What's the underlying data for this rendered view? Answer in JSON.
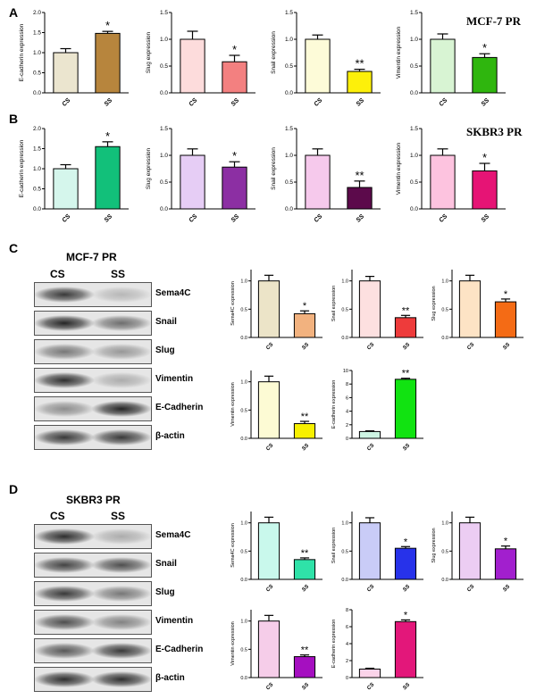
{
  "panels": {
    "A": {
      "letter": "A",
      "cell_line": "MCF-7 PR"
    },
    "B": {
      "letter": "B",
      "cell_line": "SKBR3 PR"
    },
    "C": {
      "letter": "C",
      "blot_title": "MCF-7 PR",
      "lanes": [
        "CS",
        "SS"
      ],
      "bands": [
        "Sema4C",
        "Snail",
        "Slug",
        "Vimentin",
        "E-Cadherin",
        "β-actin"
      ]
    },
    "D": {
      "letter": "D",
      "blot_title": "SKBR3 PR",
      "lanes": [
        "CS",
        "SS"
      ],
      "bands": [
        "Sema4C",
        "Snail",
        "Slug",
        "Vimentin",
        "E-Cadherin",
        "β-actin"
      ]
    }
  },
  "chart_data": [
    {
      "id": "A1",
      "type": "bar",
      "categories": [
        "CS",
        "SS"
      ],
      "values": [
        1.0,
        1.48
      ],
      "errors": [
        0.1,
        0.05
      ],
      "ylabel": "E-cadherin expression",
      "ylim": [
        0,
        2.0
      ],
      "yticks": [
        "0.0",
        "0.5",
        "1.0",
        "1.5",
        "2.0"
      ],
      "colors": [
        "#ebe5cf",
        "#b7853d"
      ],
      "significance": [
        "",
        "*"
      ],
      "grid": false
    },
    {
      "id": "A2",
      "type": "bar",
      "categories": [
        "CS",
        "SS"
      ],
      "values": [
        1.0,
        0.58
      ],
      "errors": [
        0.15,
        0.12
      ],
      "ylabel": "Slug expression",
      "ylim": [
        0,
        1.5
      ],
      "yticks": [
        "0.0",
        "0.5",
        "1.0",
        "1.5"
      ],
      "colors": [
        "#fddcdc",
        "#f38080"
      ],
      "significance": [
        "",
        "*"
      ],
      "grid": false
    },
    {
      "id": "A3",
      "type": "bar",
      "categories": [
        "CS",
        "SS"
      ],
      "values": [
        1.0,
        0.4
      ],
      "errors": [
        0.08,
        0.04
      ],
      "ylabel": "Snail expression",
      "ylim": [
        0,
        1.5
      ],
      "yticks": [
        "0.0",
        "0.5",
        "1.0",
        "1.5"
      ],
      "colors": [
        "#fdfbd8",
        "#fdf00a"
      ],
      "significance": [
        "",
        "**"
      ],
      "grid": false
    },
    {
      "id": "A4",
      "type": "bar",
      "categories": [
        "CS",
        "SS"
      ],
      "values": [
        1.0,
        0.66
      ],
      "errors": [
        0.1,
        0.07
      ],
      "ylabel": "Vimentin expression",
      "ylim": [
        0,
        1.5
      ],
      "yticks": [
        "0.0",
        "0.5",
        "1.0",
        "1.5"
      ],
      "colors": [
        "#d8f4d3",
        "#2fb60e"
      ],
      "significance": [
        "",
        "*"
      ],
      "grid": false
    },
    {
      "id": "B1",
      "type": "bar",
      "categories": [
        "CS",
        "SS"
      ],
      "values": [
        1.0,
        1.55
      ],
      "errors": [
        0.1,
        0.12
      ],
      "ylabel": "E-cadherin expression",
      "ylim": [
        0,
        2.0
      ],
      "yticks": [
        "0.0",
        "0.5",
        "1.0",
        "1.5",
        "2.0"
      ],
      "colors": [
        "#d5f6ec",
        "#12c07a"
      ],
      "significance": [
        "",
        "*"
      ],
      "grid": false
    },
    {
      "id": "B2",
      "type": "bar",
      "categories": [
        "CS",
        "SS"
      ],
      "values": [
        1.0,
        0.78
      ],
      "errors": [
        0.12,
        0.1
      ],
      "ylabel": "Slug expression",
      "ylim": [
        0,
        1.5
      ],
      "yticks": [
        "0.0",
        "0.5",
        "1.0",
        "1.5"
      ],
      "colors": [
        "#e6cdf5",
        "#8c2fa3"
      ],
      "significance": [
        "",
        "*"
      ],
      "grid": false
    },
    {
      "id": "B3",
      "type": "bar",
      "categories": [
        "CS",
        "SS"
      ],
      "values": [
        1.0,
        0.4
      ],
      "errors": [
        0.12,
        0.12
      ],
      "ylabel": "Snail expression",
      "ylim": [
        0,
        1.5
      ],
      "yticks": [
        "0.0",
        "0.5",
        "1.0",
        "1.5"
      ],
      "colors": [
        "#f6c9ec",
        "#5c0a4b"
      ],
      "significance": [
        "",
        "**"
      ],
      "grid": false
    },
    {
      "id": "B4",
      "type": "bar",
      "categories": [
        "CS",
        "SS"
      ],
      "values": [
        1.0,
        0.71
      ],
      "errors": [
        0.12,
        0.14
      ],
      "ylabel": "Vimentin expression",
      "ylim": [
        0,
        1.5
      ],
      "yticks": [
        "0.0",
        "0.5",
        "1.0",
        "1.5"
      ],
      "colors": [
        "#fdc3df",
        "#e61475"
      ],
      "significance": [
        "",
        "*"
      ],
      "grid": false
    },
    {
      "id": "C1",
      "type": "bar",
      "categories": [
        "CS",
        "SS"
      ],
      "values": [
        1.0,
        0.42
      ],
      "errors": [
        0.1,
        0.05
      ],
      "ylabel": "Sema4C expression",
      "ylim": [
        0,
        1.2
      ],
      "yticks": [
        "0.0",
        "0.5",
        "1.0"
      ],
      "colors": [
        "#ece4c8",
        "#f2b27f"
      ],
      "significance": [
        "",
        "*"
      ],
      "grid": false
    },
    {
      "id": "C2",
      "type": "bar",
      "categories": [
        "CS",
        "SS"
      ],
      "values": [
        1.0,
        0.35
      ],
      "errors": [
        0.08,
        0.04
      ],
      "ylabel": "Snail expression",
      "ylim": [
        0,
        1.2
      ],
      "yticks": [
        "0.0",
        "0.5",
        "1.0"
      ],
      "colors": [
        "#fde0e0",
        "#ee3b3b"
      ],
      "significance": [
        "",
        "**"
      ],
      "grid": false
    },
    {
      "id": "C3",
      "type": "bar",
      "categories": [
        "CS",
        "SS"
      ],
      "values": [
        1.0,
        0.63
      ],
      "errors": [
        0.1,
        0.05
      ],
      "ylabel": "Slug expression",
      "ylim": [
        0,
        1.2
      ],
      "yticks": [
        "0.0",
        "0.5",
        "1.0"
      ],
      "colors": [
        "#fde3c5",
        "#f46b15"
      ],
      "significance": [
        "",
        "*"
      ],
      "grid": false
    },
    {
      "id": "C4",
      "type": "bar",
      "categories": [
        "CS",
        "SS"
      ],
      "values": [
        1.0,
        0.26
      ],
      "errors": [
        0.1,
        0.04
      ],
      "ylabel": "Vimentin expression",
      "ylim": [
        0,
        1.2
      ],
      "yticks": [
        "0.0",
        "0.5",
        "1.0"
      ],
      "colors": [
        "#fdfbd4",
        "#f7f000"
      ],
      "significance": [
        "",
        "**"
      ],
      "grid": false
    },
    {
      "id": "C5",
      "type": "bar",
      "categories": [
        "CS",
        "SS"
      ],
      "values": [
        1.0,
        8.7
      ],
      "errors": [
        0.1,
        0.15
      ],
      "ylabel": "E-cadherin expression",
      "ylim": [
        0,
        10
      ],
      "yticks": [
        "0",
        "2",
        "4",
        "6",
        "8",
        "10"
      ],
      "colors": [
        "#cdf5e3",
        "#11e311"
      ],
      "significance": [
        "",
        "**"
      ],
      "grid": false
    },
    {
      "id": "D1",
      "type": "bar",
      "categories": [
        "CS",
        "SS"
      ],
      "values": [
        1.0,
        0.35
      ],
      "errors": [
        0.1,
        0.03
      ],
      "ylabel": "Sema4C expression",
      "ylim": [
        0,
        1.2
      ],
      "yticks": [
        "0.0",
        "0.5",
        "1.0"
      ],
      "colors": [
        "#c9f8ec",
        "#2fe2a8"
      ],
      "significance": [
        "",
        "**"
      ],
      "grid": false
    },
    {
      "id": "D2",
      "type": "bar",
      "categories": [
        "CS",
        "SS"
      ],
      "values": [
        1.0,
        0.55
      ],
      "errors": [
        0.09,
        0.03
      ],
      "ylabel": "Snail expression",
      "ylim": [
        0,
        1.2
      ],
      "yticks": [
        "0.0",
        "0.5",
        "1.0"
      ],
      "colors": [
        "#c9ccf7",
        "#2732ea"
      ],
      "significance": [
        "",
        "*"
      ],
      "grid": false
    },
    {
      "id": "D3",
      "type": "bar",
      "categories": [
        "CS",
        "SS"
      ],
      "values": [
        1.0,
        0.54
      ],
      "errors": [
        0.1,
        0.05
      ],
      "ylabel": "Slug expression",
      "ylim": [
        0,
        1.2
      ],
      "yticks": [
        "0.0",
        "0.5",
        "1.0"
      ],
      "colors": [
        "#eccdf3",
        "#a21fce"
      ],
      "significance": [
        "",
        "*"
      ],
      "grid": false
    },
    {
      "id": "D4",
      "type": "bar",
      "categories": [
        "CS",
        "SS"
      ],
      "values": [
        1.0,
        0.37
      ],
      "errors": [
        0.1,
        0.03
      ],
      "ylabel": "Vimentin expression",
      "ylim": [
        0,
        1.2
      ],
      "yticks": [
        "0.0",
        "0.5",
        "1.0"
      ],
      "colors": [
        "#f6cde9",
        "#a50fc0"
      ],
      "significance": [
        "",
        "**"
      ],
      "grid": false
    },
    {
      "id": "D5",
      "type": "bar",
      "categories": [
        "CS",
        "SS"
      ],
      "values": [
        1.0,
        6.6
      ],
      "errors": [
        0.1,
        0.2
      ],
      "ylabel": "E-cadherin expression",
      "ylim": [
        0,
        8
      ],
      "yticks": [
        "0",
        "2",
        "4",
        "6",
        "8"
      ],
      "colors": [
        "#fbd3e9",
        "#e3177a"
      ],
      "significance": [
        "",
        "*"
      ],
      "grid": false
    }
  ]
}
